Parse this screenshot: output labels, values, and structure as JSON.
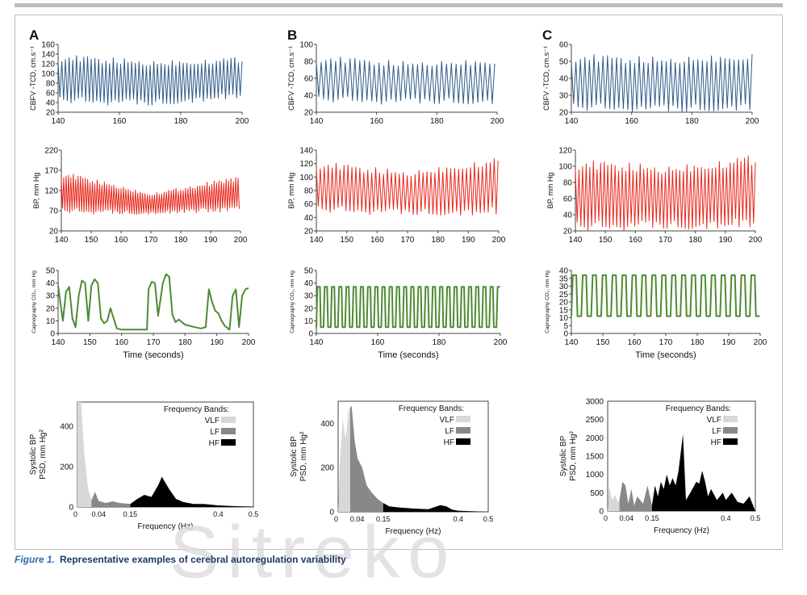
{
  "caption": {
    "label": "Figure 1.",
    "text": "Representative examples of cerebral autoregulation variability"
  },
  "watermark": "Sitreko",
  "colors": {
    "cbfv": "#2e5a87",
    "bp": "#e8271b",
    "co2": "#4e8a33",
    "vlf": "#d8d8d8",
    "lf": "#888888",
    "hf": "#000000"
  },
  "chart_data": [
    {
      "type": "line",
      "panel": "A",
      "panel_letter": "A",
      "signal": "cbfv",
      "ylabel": "CBFV -TCD, cm.s⁻¹",
      "x_range": [
        140,
        200
      ],
      "y_range": [
        20,
        160
      ],
      "x_ticks": [
        140,
        160,
        180,
        200
      ],
      "y_ticks": [
        20,
        40,
        60,
        80,
        100,
        120,
        140,
        160
      ],
      "series": {
        "period": 1.2,
        "min": [
          45,
          40,
          55
        ],
        "max": [
          132,
          120,
          128
        ]
      }
    },
    {
      "type": "line",
      "panel": "B",
      "panel_letter": "B",
      "signal": "cbfv",
      "ylabel": "CBFV -TCD, cm.s⁻¹",
      "x_range": [
        140,
        200
      ],
      "y_range": [
        20,
        100
      ],
      "x_ticks": [
        140,
        160,
        180,
        200
      ],
      "y_ticks": [
        20,
        40,
        60,
        80,
        100
      ],
      "series": {
        "period": 1.6,
        "min": [
          35,
          33,
          34
        ],
        "max": [
          83,
          76,
          80
        ]
      }
    },
    {
      "type": "line",
      "panel": "C",
      "panel_letter": "C",
      "signal": "cbfv",
      "ylabel": "CBFV -TCD, cm.s⁻¹",
      "x_range": [
        140,
        200
      ],
      "y_range": [
        20,
        60
      ],
      "x_ticks": [
        140,
        160,
        180,
        200
      ],
      "y_ticks": [
        20,
        30,
        40,
        50,
        60
      ],
      "series": {
        "period": 1.5,
        "min": [
          23,
          22,
          24
        ],
        "max": [
          52,
          50,
          53
        ]
      }
    },
    {
      "type": "line",
      "panel": "A",
      "signal": "bp",
      "ylabel": "BP, mm Hg",
      "x_range": [
        140,
        200
      ],
      "y_range": [
        20,
        220
      ],
      "x_ticks": [
        140,
        150,
        160,
        170,
        180,
        190,
        200
      ],
      "y_ticks": [
        20,
        70,
        120,
        170,
        220
      ],
      "series": {
        "period": 0.8,
        "min": [
          70,
          65,
          75
        ],
        "max": [
          160,
          110,
          150
        ]
      }
    },
    {
      "type": "line",
      "panel": "B",
      "signal": "bp",
      "ylabel": "BP, mm Hg",
      "x_range": [
        140,
        200
      ],
      "y_range": [
        20,
        140
      ],
      "x_ticks": [
        140,
        150,
        160,
        170,
        180,
        190,
        200
      ],
      "y_ticks": [
        20,
        40,
        60,
        80,
        100,
        120,
        140
      ],
      "series": {
        "period": 1.3,
        "min": [
          52,
          48,
          50
        ],
        "max": [
          118,
          104,
          124
        ]
      }
    },
    {
      "type": "line",
      "panel": "C",
      "signal": "bp",
      "ylabel": "BP, mm Hg",
      "x_range": [
        140,
        200
      ],
      "y_range": [
        20,
        120
      ],
      "x_ticks": [
        140,
        150,
        160,
        170,
        180,
        190,
        200
      ],
      "y_ticks": [
        20,
        40,
        60,
        80,
        100,
        120
      ],
      "series": {
        "period": 1.2,
        "min": [
          25,
          28,
          30
        ],
        "max": [
          102,
          95,
          108
        ]
      }
    },
    {
      "type": "line",
      "panel": "A",
      "signal": "co2",
      "ylabel": "Capnography CO₂, mm Hg",
      "xlabel": "Time (seconds)",
      "x_range": [
        140,
        200
      ],
      "y_range": [
        0,
        50
      ],
      "x_ticks": [
        140,
        150,
        160,
        170,
        180,
        190,
        200
      ],
      "y_ticks": [
        0,
        10,
        20,
        30,
        40,
        50
      ],
      "series": {
        "points": [
          [
            140,
            38
          ],
          [
            141.5,
            10
          ],
          [
            142.5,
            33
          ],
          [
            143.5,
            37
          ],
          [
            144.5,
            12
          ],
          [
            145.5,
            5
          ],
          [
            146.5,
            30
          ],
          [
            147.5,
            42
          ],
          [
            148.5,
            40
          ],
          [
            149.5,
            10
          ],
          [
            150.5,
            38
          ],
          [
            151.5,
            43
          ],
          [
            152.5,
            40
          ],
          [
            153.5,
            12
          ],
          [
            154.5,
            8
          ],
          [
            155.5,
            10
          ],
          [
            156.5,
            20
          ],
          [
            157.5,
            12
          ],
          [
            158.5,
            4
          ],
          [
            160,
            3
          ],
          [
            165,
            3
          ],
          [
            168,
            3
          ],
          [
            168.5,
            35
          ],
          [
            169.5,
            41
          ],
          [
            170.5,
            40
          ],
          [
            171.5,
            14
          ],
          [
            173,
            40
          ],
          [
            174,
            47
          ],
          [
            175,
            45
          ],
          [
            176,
            15
          ],
          [
            177,
            9
          ],
          [
            178,
            11
          ],
          [
            180,
            7
          ],
          [
            183,
            5
          ],
          [
            185,
            4
          ],
          [
            186.5,
            5
          ],
          [
            187.5,
            35
          ],
          [
            188.5,
            25
          ],
          [
            189.5,
            18
          ],
          [
            190.5,
            16
          ],
          [
            191.5,
            10
          ],
          [
            192.5,
            6
          ],
          [
            194,
            3
          ],
          [
            195,
            30
          ],
          [
            196,
            35
          ],
          [
            197,
            5
          ],
          [
            198,
            30
          ],
          [
            199,
            35
          ],
          [
            200,
            36
          ]
        ]
      }
    },
    {
      "type": "line",
      "panel": "B",
      "signal": "co2",
      "ylabel": "Capnography CO₂, mm Hg",
      "xlabel": "Time (seconds)",
      "x_range": [
        140,
        200
      ],
      "y_range": [
        0,
        50
      ],
      "x_ticks": [
        140,
        160,
        180,
        200
      ],
      "y_ticks": [
        0,
        10,
        20,
        30,
        40,
        50
      ],
      "series": {
        "period": 2.35,
        "min": 5,
        "max": 37
      }
    },
    {
      "type": "line",
      "panel": "C",
      "signal": "co2",
      "ylabel": "Capnography CO₂, mm Hg",
      "xlabel": "Time (seconds)",
      "x_range": [
        140,
        200
      ],
      "y_range": [
        0,
        40
      ],
      "x_ticks": [
        140,
        150,
        160,
        170,
        180,
        190,
        200
      ],
      "y_ticks": [
        0,
        5,
        10,
        15,
        20,
        25,
        30,
        35,
        40
      ],
      "series": {
        "period": 3.15,
        "min": 11,
        "max": 37
      }
    },
    {
      "type": "area",
      "panel": "A",
      "signal": "psd",
      "ylabel": "Systolic BP PSD, mm Hg²",
      "xlabel": "Frequency (Hz)",
      "x_range": [
        0,
        0.5
      ],
      "y_range": [
        0,
        520
      ],
      "x_ticks": [
        "0",
        "0.04",
        "0.15",
        "0.4",
        "0.5"
      ],
      "x_tick_values": [
        0,
        0.04,
        0.15,
        0.4,
        0.5
      ],
      "y_ticks": [
        0,
        200,
        400
      ],
      "legend": {
        "title": "Frequency Bands:",
        "items": [
          "VLF",
          "LF",
          "HF"
        ]
      },
      "bands": [
        {
          "name": "VLF",
          "points": [
            [
              0,
              520
            ],
            [
              0.01,
              520
            ],
            [
              0.02,
              260
            ],
            [
              0.03,
              90
            ],
            [
              0.04,
              35
            ]
          ]
        },
        {
          "name": "LF",
          "points": [
            [
              0.04,
              35
            ],
            [
              0.05,
              75
            ],
            [
              0.06,
              30
            ],
            [
              0.08,
              20
            ],
            [
              0.1,
              28
            ],
            [
              0.12,
              20
            ],
            [
              0.15,
              15
            ]
          ]
        },
        {
          "name": "HF",
          "points": [
            [
              0.15,
              15
            ],
            [
              0.17,
              40
            ],
            [
              0.19,
              60
            ],
            [
              0.21,
              50
            ],
            [
              0.23,
              110
            ],
            [
              0.24,
              150
            ],
            [
              0.26,
              90
            ],
            [
              0.28,
              40
            ],
            [
              0.3,
              25
            ],
            [
              0.33,
              15
            ],
            [
              0.36,
              15
            ],
            [
              0.4,
              8
            ],
            [
              0.45,
              4
            ],
            [
              0.5,
              2
            ]
          ]
        }
      ]
    },
    {
      "type": "area",
      "panel": "B",
      "signal": "psd",
      "ylabel": "Systolic BP PSD, mm Hg²",
      "xlabel": "Frequency (Hz)",
      "x_range": [
        0,
        0.5
      ],
      "y_range": [
        0,
        500
      ],
      "x_ticks": [
        "0",
        "0.04",
        "0.15",
        "0.4",
        "0.5"
      ],
      "x_tick_values": [
        0,
        0.04,
        0.15,
        0.4,
        0.5
      ],
      "y_ticks": [
        0,
        200,
        400
      ],
      "legend": {
        "title": "Frequency Bands:",
        "items": [
          "VLF",
          "LF",
          "HF"
        ]
      },
      "bands": [
        {
          "name": "VLF",
          "points": [
            [
              0,
              0
            ],
            [
              0.005,
              200
            ],
            [
              0.015,
              420
            ],
            [
              0.025,
              330
            ],
            [
              0.035,
              460
            ],
            [
              0.04,
              470
            ]
          ]
        },
        {
          "name": "LF",
          "points": [
            [
              0.04,
              470
            ],
            [
              0.045,
              480
            ],
            [
              0.055,
              320
            ],
            [
              0.065,
              240
            ],
            [
              0.08,
              200
            ],
            [
              0.095,
              120
            ],
            [
              0.11,
              90
            ],
            [
              0.13,
              60
            ],
            [
              0.15,
              40
            ]
          ]
        },
        {
          "name": "HF",
          "points": [
            [
              0.15,
              40
            ],
            [
              0.17,
              25
            ],
            [
              0.2,
              20
            ],
            [
              0.25,
              15
            ],
            [
              0.3,
              12
            ],
            [
              0.34,
              30
            ],
            [
              0.36,
              25
            ],
            [
              0.38,
              10
            ],
            [
              0.4,
              5
            ],
            [
              0.5,
              0
            ]
          ]
        }
      ]
    },
    {
      "type": "area",
      "panel": "C",
      "signal": "psd",
      "ylabel": "Systolic BP PSD, mm Hg²",
      "xlabel": "Frequency (Hz)",
      "x_range": [
        0,
        0.5
      ],
      "y_range": [
        0,
        3000
      ],
      "x_ticks": [
        "0",
        "0.04",
        "0.15",
        "0.4",
        "0.5"
      ],
      "x_tick_values": [
        0,
        0.04,
        0.15,
        0.4,
        0.5
      ],
      "y_ticks": [
        0,
        500,
        1000,
        1500,
        2000,
        2500,
        3000
      ],
      "legend": {
        "title": "Frequency Bands:",
        "items": [
          "VLF",
          "LF",
          "HF"
        ]
      },
      "bands": [
        {
          "name": "VLF",
          "points": [
            [
              0,
              0
            ],
            [
              0.005,
              700
            ],
            [
              0.015,
              300
            ],
            [
              0.025,
              450
            ],
            [
              0.035,
              250
            ],
            [
              0.04,
              300
            ]
          ]
        },
        {
          "name": "LF",
          "points": [
            [
              0.04,
              300
            ],
            [
              0.05,
              800
            ],
            [
              0.06,
              700
            ],
            [
              0.07,
              200
            ],
            [
              0.08,
              600
            ],
            [
              0.09,
              150
            ],
            [
              0.1,
              400
            ],
            [
              0.12,
              200
            ],
            [
              0.135,
              700
            ],
            [
              0.15,
              150
            ]
          ]
        },
        {
          "name": "HF",
          "points": [
            [
              0.15,
              150
            ],
            [
              0.16,
              700
            ],
            [
              0.17,
              400
            ],
            [
              0.18,
              800
            ],
            [
              0.19,
              600
            ],
            [
              0.2,
              1000
            ],
            [
              0.21,
              700
            ],
            [
              0.22,
              900
            ],
            [
              0.23,
              700
            ],
            [
              0.24,
              1100
            ],
            [
              0.255,
              2100
            ],
            [
              0.265,
              300
            ],
            [
              0.28,
              500
            ],
            [
              0.3,
              800
            ],
            [
              0.31,
              750
            ],
            [
              0.32,
              1100
            ],
            [
              0.33,
              800
            ],
            [
              0.34,
              400
            ],
            [
              0.35,
              600
            ],
            [
              0.37,
              300
            ],
            [
              0.39,
              500
            ],
            [
              0.4,
              300
            ],
            [
              0.42,
              500
            ],
            [
              0.44,
              250
            ],
            [
              0.46,
              200
            ],
            [
              0.48,
              400
            ],
            [
              0.5,
              0
            ]
          ]
        }
      ]
    }
  ]
}
